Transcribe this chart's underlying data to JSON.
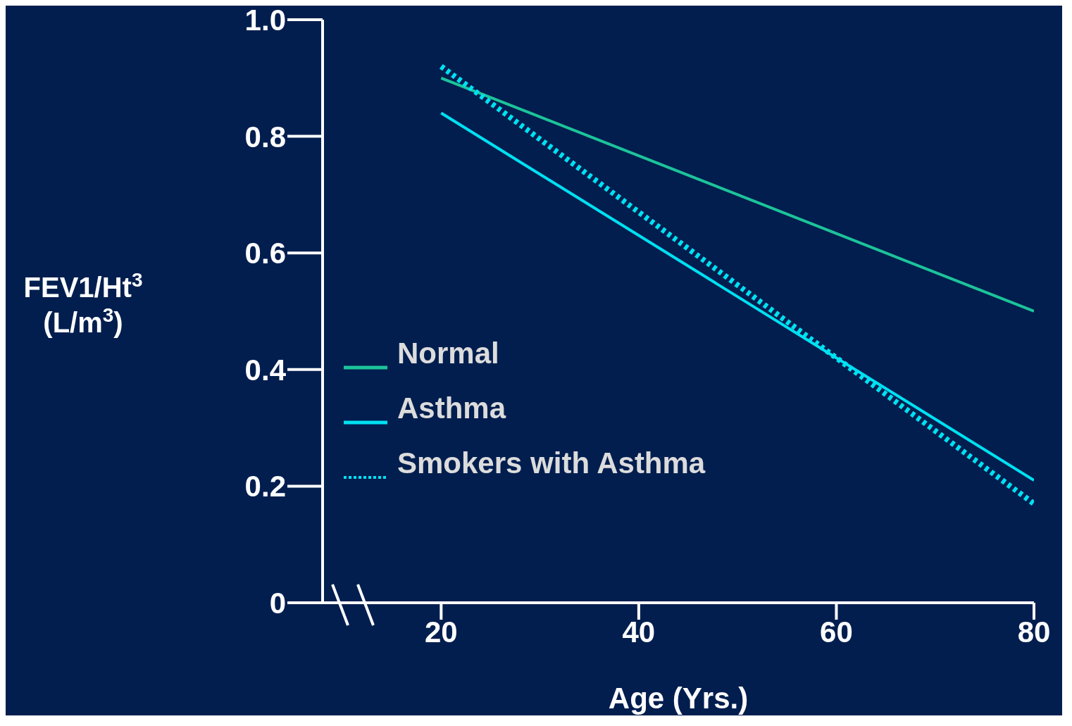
{
  "chart_data": {
    "type": "line",
    "xlabel": "Age (Yrs.)",
    "ylabel": "FEV1/Ht$^{3}$\n(L/m$^{3}$)",
    "x": [
      20,
      80
    ],
    "xlim": [
      8,
      80
    ],
    "xticks": [
      20,
      40,
      60,
      80
    ],
    "ylim": [
      0,
      1
    ],
    "yticks": [
      0,
      {
        "value": 0.2,
        "label": "0.2"
      },
      {
        "value": 0.4,
        "label": "0.4"
      },
      {
        "value": 0.6,
        "label": "0.6"
      },
      {
        "value": 0.8,
        "label": "0.8"
      },
      {
        "value": 1,
        "label": "1.0"
      }
    ],
    "grid": false,
    "legend": "left",
    "marker": "none",
    "series": [
      {
        "name": "Normal",
        "color": "#1cc49a",
        "values": [
          0.9,
          0.5
        ],
        "line_style": "solid"
      },
      {
        "name": "Asthma",
        "color": "#00e1f2",
        "values": [
          0.84,
          0.21
        ],
        "line_style": "solid"
      },
      {
        "name": "Smokers with Asthma",
        "color": "#00e1f2",
        "values": [
          0.92,
          0.17
        ],
        "line_style": "dotted"
      }
    ]
  }
}
